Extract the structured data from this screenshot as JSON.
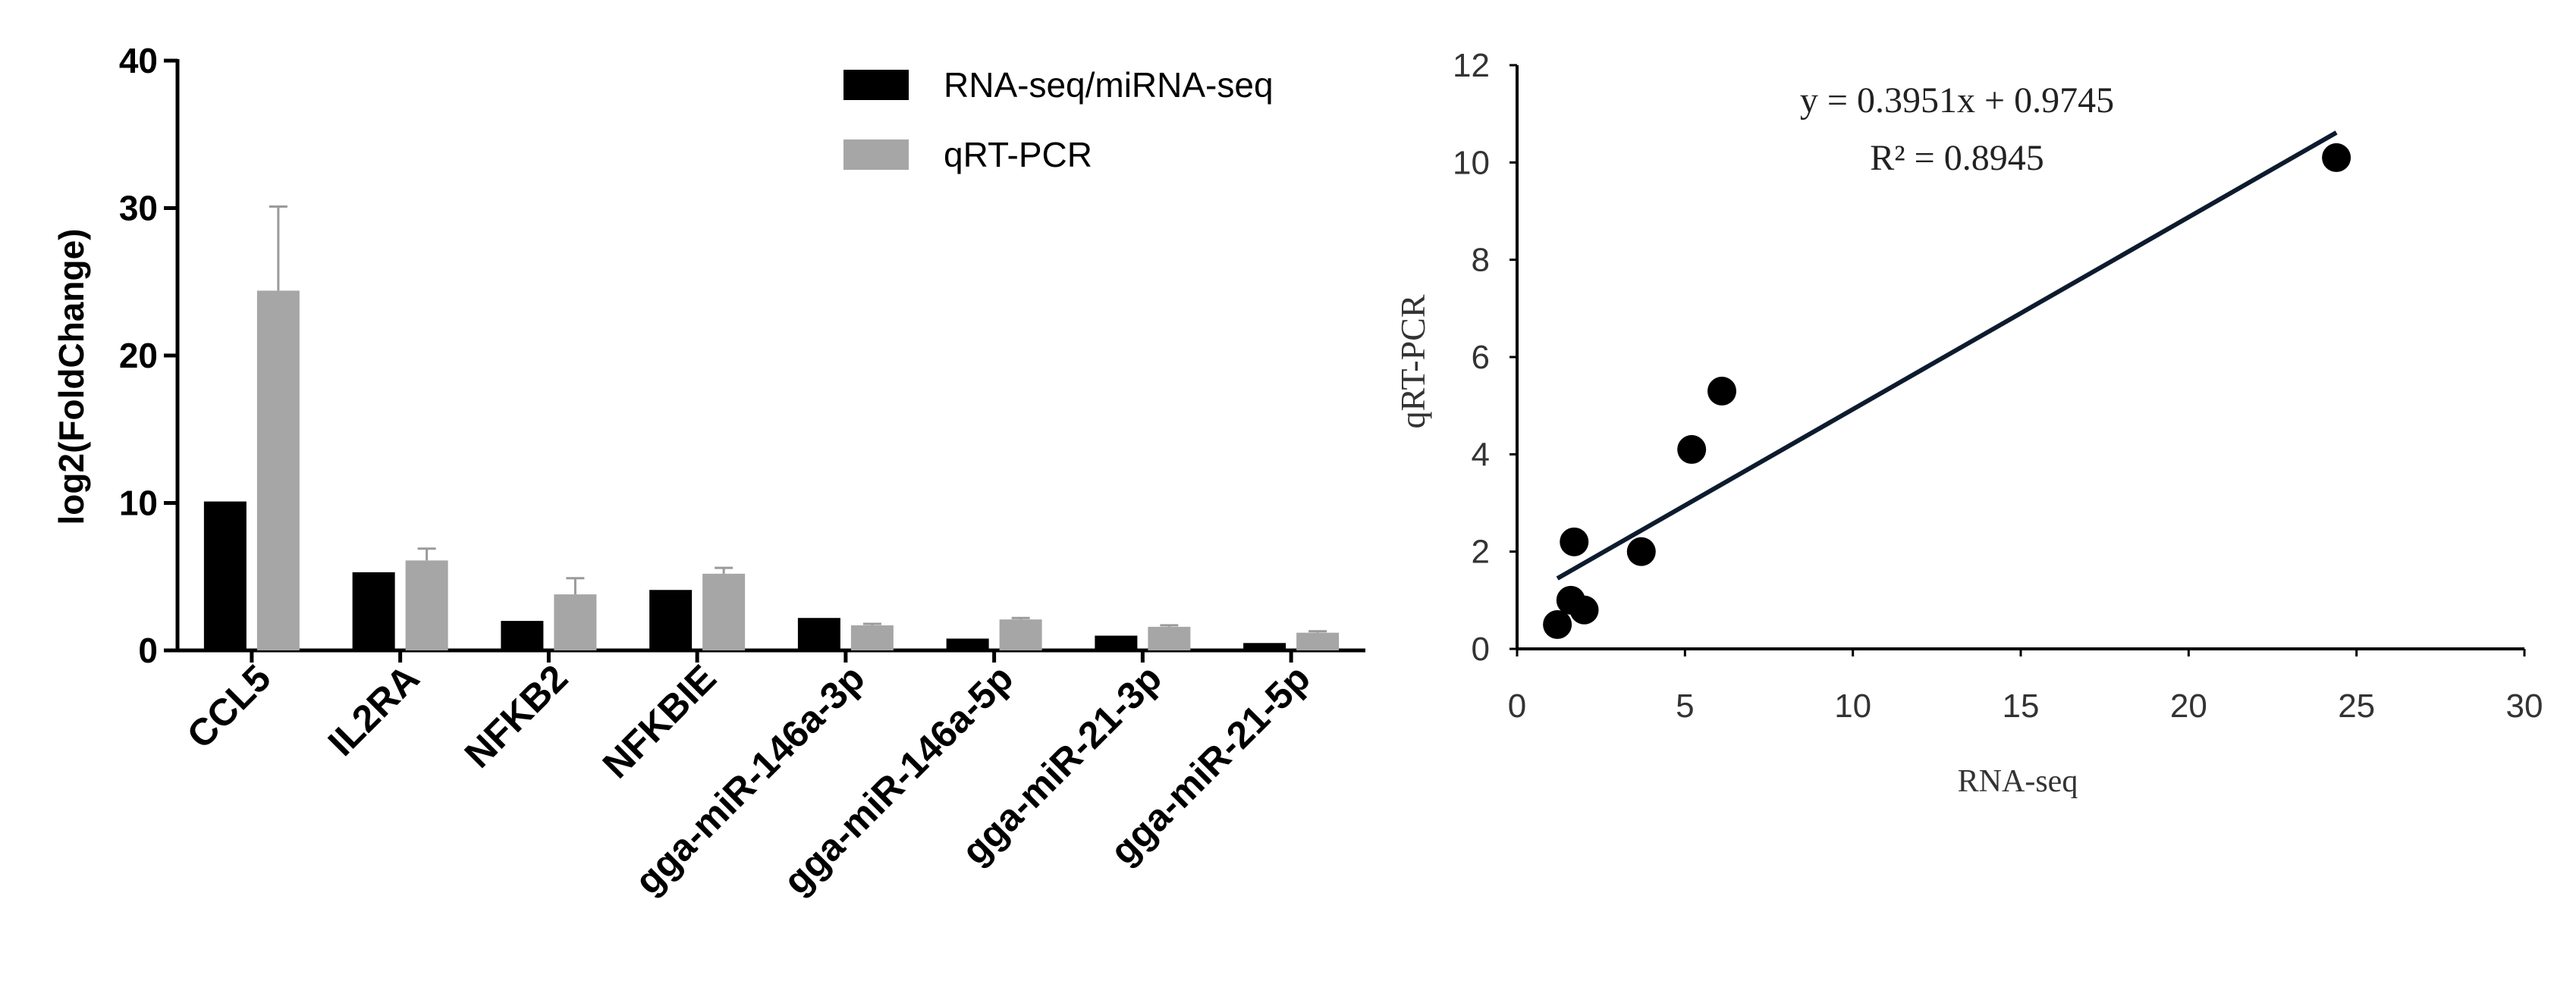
{
  "chart_data": [
    {
      "type": "bar",
      "ylabel": "log2(FoldChange)",
      "ylim": [
        0,
        40
      ],
      "yticks": [
        0,
        10,
        20,
        30,
        40
      ],
      "categories": [
        "CCL5",
        "IL2RA",
        "NFKB2",
        "NFKBIE",
        "gga-miR-146a-3p",
        "gga-miR-146a-5p",
        "gga-miR-21-3p",
        "gga-miR-21-5p"
      ],
      "legend_position": "top-right",
      "series": [
        {
          "name": "RNA-seq/miRNA-seq",
          "color": "#000000",
          "values": [
            10.1,
            5.3,
            2.0,
            4.1,
            2.2,
            0.8,
            1.0,
            0.5
          ],
          "errors": [
            0,
            0,
            0,
            0,
            0,
            0,
            0,
            0
          ]
        },
        {
          "name": "qRT-PCR",
          "color": "#a6a6a6",
          "values": [
            24.4,
            6.1,
            3.8,
            5.2,
            1.7,
            2.1,
            1.6,
            1.2
          ],
          "errors": [
            5.7,
            0.8,
            1.1,
            0.4,
            0.1,
            0.1,
            0.1,
            0.1
          ]
        }
      ]
    },
    {
      "type": "scatter",
      "xlabel": "RNA-seq",
      "ylabel": "qRT-PCR",
      "xlim": [
        0,
        30
      ],
      "ylim": [
        0,
        12
      ],
      "xticks": [
        0,
        5,
        10,
        15,
        20,
        25,
        30
      ],
      "yticks": [
        0,
        2,
        4,
        6,
        8,
        10,
        12
      ],
      "points": [
        {
          "x": 1.2,
          "y": 0.5
        },
        {
          "x": 1.6,
          "y": 1.0
        },
        {
          "x": 2.0,
          "y": 0.8
        },
        {
          "x": 1.7,
          "y": 2.2
        },
        {
          "x": 3.7,
          "y": 2.0
        },
        {
          "x": 5.2,
          "y": 4.1
        },
        {
          "x": 6.1,
          "y": 5.3
        },
        {
          "x": 24.4,
          "y": 10.1
        }
      ],
      "trendline": {
        "slope": 0.3951,
        "intercept": 0.9745,
        "x_range": [
          1.2,
          24.4
        ]
      },
      "equation": "y = 0.3951x + 0.9745",
      "r_squared": "R² = 0.8945"
    }
  ]
}
